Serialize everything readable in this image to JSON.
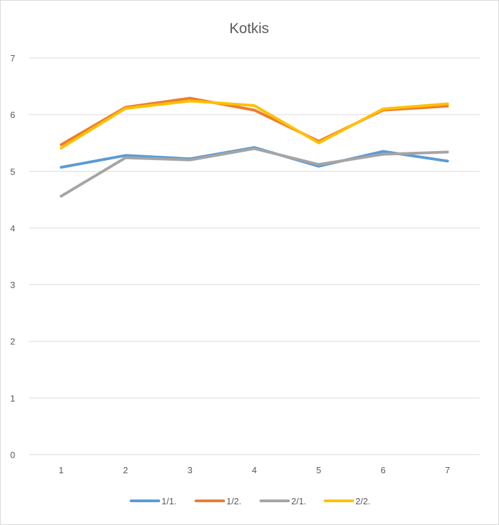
{
  "chart_data": {
    "type": "line",
    "title": "Kotkis",
    "xlabel": "",
    "ylabel": "",
    "categories": [
      "1",
      "2",
      "3",
      "4",
      "5",
      "6",
      "7"
    ],
    "ylim": [
      0,
      7
    ],
    "yticks": [
      "0",
      "1",
      "2",
      "3",
      "4",
      "5",
      "6",
      "7"
    ],
    "grid": true,
    "legend_position": "bottom",
    "series": [
      {
        "name": "1/1.",
        "color": "#5b9bd5",
        "values": [
          5.07,
          5.28,
          5.22,
          5.42,
          5.09,
          5.35,
          5.18
        ]
      },
      {
        "name": "1/2.",
        "color": "#ed7d31",
        "values": [
          5.47,
          6.13,
          6.29,
          6.08,
          5.53,
          6.08,
          6.15
        ]
      },
      {
        "name": "2/1.",
        "color": "#a5a5a5",
        "values": [
          4.56,
          5.24,
          5.2,
          5.4,
          5.12,
          5.3,
          5.34
        ]
      },
      {
        "name": "2/2.",
        "color": "#ffc000",
        "values": [
          5.41,
          6.11,
          6.24,
          6.16,
          5.5,
          6.1,
          6.19
        ]
      }
    ]
  }
}
